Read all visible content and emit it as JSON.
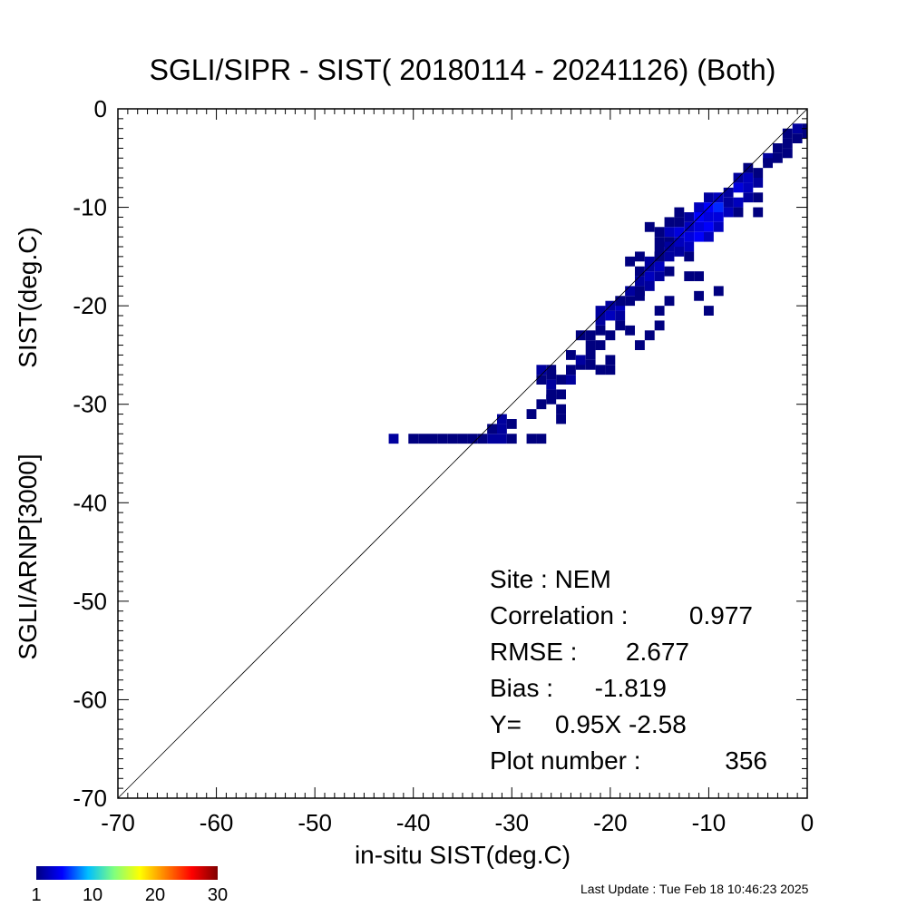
{
  "chart_data": {
    "type": "heatmap",
    "title": "SGLI/SIPR - SIST( 20180114 - 20241126) (Both)",
    "xlabel": "in-situ SIST(deg.C)",
    "ylabel_lines": [
      "SIST(deg.C)",
      "SGLI/ARNP[3000]"
    ],
    "xlim": [
      -70,
      0
    ],
    "ylim": [
      -70,
      0
    ],
    "x_ticks": [
      "-70",
      "-60",
      "-50",
      "-40",
      "-30",
      "-20",
      "-10",
      "0"
    ],
    "y_ticks": [
      "-70",
      "-60",
      "-50",
      "-40",
      "-30",
      "-20",
      "-10",
      "0"
    ],
    "one_to_one_line": true,
    "bin_size": 1,
    "colorbar": {
      "ticks": [
        "1",
        "10",
        "20",
        "30"
      ],
      "range": [
        1,
        30
      ],
      "colors": [
        "#00007f",
        "#0000ff",
        "#00bfff",
        "#7fff7f",
        "#ffff00",
        "#ff7f00",
        "#ff0000",
        "#7f0000"
      ]
    },
    "bins": [
      {
        "x": -42,
        "y": -33.5,
        "c": 2
      },
      {
        "x": -40,
        "y": -33.5,
        "c": 1
      },
      {
        "x": -39,
        "y": -33.5,
        "c": 1
      },
      {
        "x": -38,
        "y": -33.5,
        "c": 1
      },
      {
        "x": -37,
        "y": -33.5,
        "c": 1
      },
      {
        "x": -36,
        "y": -33.5,
        "c": 1
      },
      {
        "x": -35,
        "y": -33.5,
        "c": 1
      },
      {
        "x": -34,
        "y": -33.5,
        "c": 1
      },
      {
        "x": -33,
        "y": -33.5,
        "c": 1
      },
      {
        "x": -32,
        "y": -33.5,
        "c": 2
      },
      {
        "x": -31,
        "y": -33.5,
        "c": 2
      },
      {
        "x": -30,
        "y": -33.5,
        "c": 1
      },
      {
        "x": -28,
        "y": -33.5,
        "c": 1
      },
      {
        "x": -27,
        "y": -33.5,
        "c": 1
      },
      {
        "x": -32,
        "y": -32.5,
        "c": 1
      },
      {
        "x": -31,
        "y": -32.5,
        "c": 2
      },
      {
        "x": -30,
        "y": -32,
        "c": 1
      },
      {
        "x": -31,
        "y": -31.5,
        "c": 2
      },
      {
        "x": -28,
        "y": -31,
        "c": 1
      },
      {
        "x": -27,
        "y": -30,
        "c": 1
      },
      {
        "x": -26,
        "y": -29.5,
        "c": 1
      },
      {
        "x": -25,
        "y": -30.5,
        "c": 1
      },
      {
        "x": -25,
        "y": -31.5,
        "c": 1
      },
      {
        "x": -26,
        "y": -29,
        "c": 1
      },
      {
        "x": -25,
        "y": -29,
        "c": 1
      },
      {
        "x": -26,
        "y": -28,
        "c": 2
      },
      {
        "x": -27,
        "y": -27.5,
        "c": 1
      },
      {
        "x": -26,
        "y": -27,
        "c": 1
      },
      {
        "x": -27,
        "y": -26.5,
        "c": 2
      },
      {
        "x": -26,
        "y": -26.5,
        "c": 1
      },
      {
        "x": -25,
        "y": -27.5,
        "c": 1
      },
      {
        "x": -24,
        "y": -27.5,
        "c": 2
      },
      {
        "x": -24,
        "y": -26.5,
        "c": 1
      },
      {
        "x": -23,
        "y": -26,
        "c": 1
      },
      {
        "x": -22,
        "y": -26,
        "c": 1
      },
      {
        "x": -24,
        "y": -25,
        "c": 1
      },
      {
        "x": -23,
        "y": -25.5,
        "c": 2
      },
      {
        "x": -22,
        "y": -25,
        "c": 1
      },
      {
        "x": -22,
        "y": -24,
        "c": 1
      },
      {
        "x": -21,
        "y": -24,
        "c": 1
      },
      {
        "x": -21,
        "y": -26.5,
        "c": 1
      },
      {
        "x": -20,
        "y": -25.5,
        "c": 1
      },
      {
        "x": -20,
        "y": -26.5,
        "c": 1
      },
      {
        "x": -23,
        "y": -23,
        "c": 1
      },
      {
        "x": -22,
        "y": -23,
        "c": 1
      },
      {
        "x": -21,
        "y": -22.5,
        "c": 1
      },
      {
        "x": -21,
        "y": -21.5,
        "c": 2
      },
      {
        "x": -21,
        "y": -20.5,
        "c": 2
      },
      {
        "x": -20,
        "y": -21,
        "c": 3
      },
      {
        "x": -20,
        "y": -20,
        "c": 2
      },
      {
        "x": -19,
        "y": -21,
        "c": 2
      },
      {
        "x": -19,
        "y": -20,
        "c": 3
      },
      {
        "x": -19,
        "y": -19.5,
        "c": 1
      },
      {
        "x": -18,
        "y": -19.5,
        "c": 1
      },
      {
        "x": -18,
        "y": -18.5,
        "c": 2
      },
      {
        "x": -17,
        "y": -18.5,
        "c": 1
      },
      {
        "x": -17,
        "y": -19,
        "c": 1
      },
      {
        "x": -19,
        "y": -22,
        "c": 1
      },
      {
        "x": -18,
        "y": -22.5,
        "c": 1
      },
      {
        "x": -17,
        "y": -24,
        "c": 1
      },
      {
        "x": -16,
        "y": -23,
        "c": 1
      },
      {
        "x": -15,
        "y": -22,
        "c": 1
      },
      {
        "x": -15,
        "y": -20.5,
        "c": 1
      },
      {
        "x": -14,
        "y": -19.5,
        "c": 1
      },
      {
        "x": -17,
        "y": -17.5,
        "c": 2
      },
      {
        "x": -16,
        "y": -17,
        "c": 3
      },
      {
        "x": -16,
        "y": -18,
        "c": 2
      },
      {
        "x": -17,
        "y": -16.5,
        "c": 1
      },
      {
        "x": -16,
        "y": -16,
        "c": 2
      },
      {
        "x": -15,
        "y": -16,
        "c": 3
      },
      {
        "x": -15,
        "y": -17,
        "c": 2
      },
      {
        "x": -16,
        "y": -15.5,
        "c": 2
      },
      {
        "x": -15,
        "y": -15,
        "c": 1
      },
      {
        "x": -14,
        "y": -15,
        "c": 2
      },
      {
        "x": -14,
        "y": -16.5,
        "c": 1
      },
      {
        "x": -15,
        "y": -14.5,
        "c": 1
      },
      {
        "x": -15,
        "y": -13.5,
        "c": 1
      },
      {
        "x": -14,
        "y": -13.5,
        "c": 1
      },
      {
        "x": -14,
        "y": -12.5,
        "c": 3
      },
      {
        "x": -13,
        "y": -12.5,
        "c": 4
      },
      {
        "x": -13,
        "y": -13.5,
        "c": 3
      },
      {
        "x": -12,
        "y": -13,
        "c": 4
      },
      {
        "x": -12,
        "y": -14,
        "c": 3
      },
      {
        "x": -13,
        "y": -14.5,
        "c": 2
      },
      {
        "x": -12,
        "y": -12,
        "c": 3
      },
      {
        "x": -11,
        "y": -12,
        "c": 4
      },
      {
        "x": -11,
        "y": -13,
        "c": 5
      },
      {
        "x": -12,
        "y": -11,
        "c": 2
      },
      {
        "x": -11,
        "y": -11,
        "c": 5
      },
      {
        "x": -10,
        "y": -11,
        "c": 4
      },
      {
        "x": -10,
        "y": -12,
        "c": 5
      },
      {
        "x": -11,
        "y": -10,
        "c": 3
      },
      {
        "x": -10,
        "y": -10,
        "c": 5
      },
      {
        "x": -10,
        "y": -13,
        "c": 3
      },
      {
        "x": -9,
        "y": -12,
        "c": 3
      },
      {
        "x": -9,
        "y": -11,
        "c": 4
      },
      {
        "x": -9,
        "y": -10,
        "c": 6
      },
      {
        "x": -9,
        "y": -9,
        "c": 3
      },
      {
        "x": -10,
        "y": -9,
        "c": 2
      },
      {
        "x": -8,
        "y": -10.5,
        "c": 3
      },
      {
        "x": -8,
        "y": -9.5,
        "c": 2
      },
      {
        "x": -8,
        "y": -8.5,
        "c": 2
      },
      {
        "x": -7,
        "y": -9.5,
        "c": 3
      },
      {
        "x": -7,
        "y": -8,
        "c": 4
      },
      {
        "x": -6,
        "y": -8,
        "c": 3
      },
      {
        "x": -7,
        "y": -7,
        "c": 2
      },
      {
        "x": -6,
        "y": -7,
        "c": 3
      },
      {
        "x": -6,
        "y": -9,
        "c": 2
      },
      {
        "x": -5,
        "y": -7.5,
        "c": 2
      },
      {
        "x": -5,
        "y": -6.5,
        "c": 1
      },
      {
        "x": -6,
        "y": -6,
        "c": 1
      },
      {
        "x": -5,
        "y": -9,
        "c": 1
      },
      {
        "x": -13,
        "y": -11.5,
        "c": 1
      },
      {
        "x": -14,
        "y": -11.5,
        "c": 1
      },
      {
        "x": -13,
        "y": -10.5,
        "c": 1
      },
      {
        "x": -15,
        "y": -12.5,
        "c": 1
      },
      {
        "x": -16,
        "y": -12,
        "c": 1
      },
      {
        "x": -12,
        "y": -17,
        "c": 1
      },
      {
        "x": -11,
        "y": -17,
        "c": 1
      },
      {
        "x": -11,
        "y": -19,
        "c": 1
      },
      {
        "x": -10,
        "y": -20.5,
        "c": 1
      },
      {
        "x": -9,
        "y": -18.5,
        "c": 1
      },
      {
        "x": -15,
        "y": -15,
        "c": 1
      },
      {
        "x": -7,
        "y": -10.5,
        "c": 1
      },
      {
        "x": -5,
        "y": -10.5,
        "c": 1
      },
      {
        "x": -4,
        "y": -5,
        "c": 2
      },
      {
        "x": -4,
        "y": -5.5,
        "c": 1
      },
      {
        "x": -3,
        "y": -5,
        "c": 1
      },
      {
        "x": -3,
        "y": -4,
        "c": 1
      },
      {
        "x": -2,
        "y": -3.5,
        "c": 1
      },
      {
        "x": -2,
        "y": -4.5,
        "c": 1
      },
      {
        "x": -2,
        "y": -2.5,
        "c": 1
      },
      {
        "x": -1,
        "y": -2,
        "c": 2
      },
      {
        "x": -1,
        "y": -3,
        "c": 1
      },
      {
        "x": 0,
        "y": -2,
        "c": 1
      },
      {
        "x": 0,
        "y": -2.5,
        "c": 1
      },
      {
        "x": -18,
        "y": -15.5,
        "c": 1
      },
      {
        "x": -17,
        "y": -15,
        "c": 1
      },
      {
        "x": -12,
        "y": -15,
        "c": 1
      },
      {
        "x": -14,
        "y": -14,
        "c": 2
      },
      {
        "x": -20,
        "y": -23,
        "c": 1
      }
    ]
  },
  "stats": {
    "site": "Site : NEM",
    "correlation_label": "Correlation :",
    "correlation_value": "0.977",
    "rmse_label": "RMSE :",
    "rmse_value": "2.677",
    "bias_label": "Bias :",
    "bias_value": "-1.819",
    "regression_label": "Y=",
    "regression_value": "0.95X  -2.58",
    "plot_number_label": "Plot number :",
    "plot_number_value": "356"
  },
  "footer": {
    "last_update": "Last Update : Tue Feb 18 10:46:23 2025"
  }
}
